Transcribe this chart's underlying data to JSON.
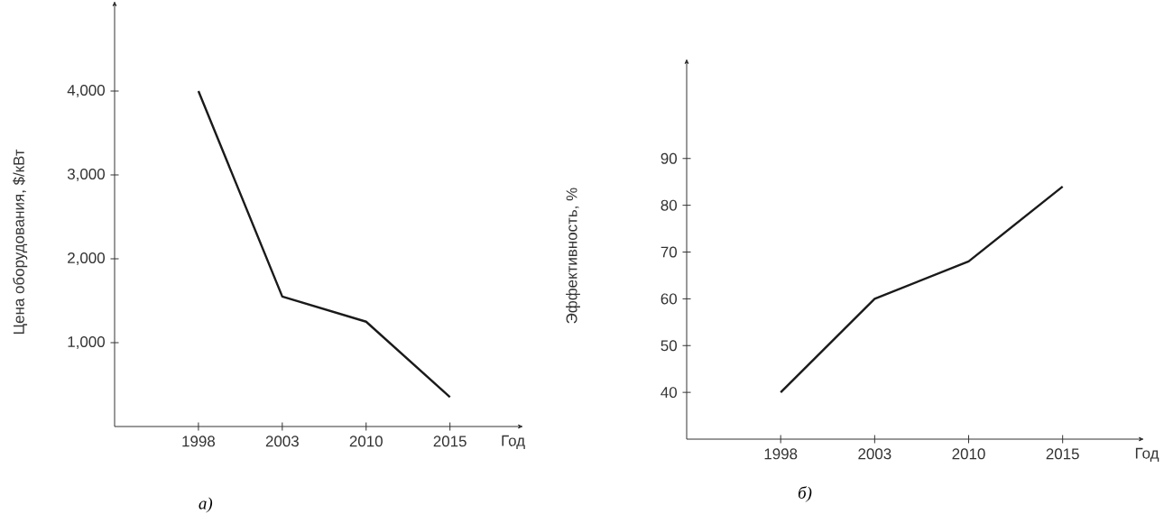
{
  "chart_data": [
    {
      "type": "line",
      "categories": [
        "1998",
        "2003",
        "2010",
        "2015"
      ],
      "values": [
        4000,
        1550,
        1250,
        350
      ],
      "color": "#1a1a1a",
      "ylabel": "Цена оборудования, $/кВт",
      "xlabel": "Год",
      "ylim": [
        0,
        5000
      ],
      "yticks": [
        {
          "value": 1000,
          "label": "1,000"
        },
        {
          "value": 2000,
          "label": "2,000"
        },
        {
          "value": 3000,
          "label": "3,000"
        },
        {
          "value": 4000,
          "label": "4,000"
        }
      ],
      "annotations": [
        "а)"
      ]
    },
    {
      "type": "line",
      "categories": [
        "1998",
        "2003",
        "2010",
        "2015"
      ],
      "values": [
        40,
        60,
        68,
        84
      ],
      "color": "#1a1a1a",
      "ylabel": "Эффективность, %",
      "xlabel": "Год",
      "ylim": [
        30,
        110
      ],
      "yticks": [
        40,
        50,
        60,
        70,
        80,
        90
      ],
      "annotations": [
        "б)"
      ]
    }
  ]
}
